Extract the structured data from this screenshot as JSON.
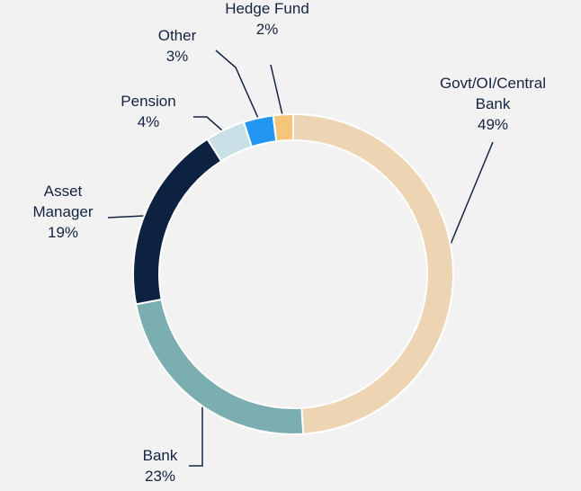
{
  "chart_data": {
    "type": "donut",
    "categories": [
      "Govt/OI/Central\nBank",
      "Bank",
      "Asset\nManager",
      "Pension",
      "Other",
      "Hedge Fund"
    ],
    "values": [
      49,
      23,
      19,
      4,
      3,
      2
    ],
    "value_labels": [
      "49%",
      "23%",
      "19%",
      "4%",
      "3%",
      "2%"
    ],
    "colors": [
      "#edd5b3",
      "#7aaeb0",
      "#0d2240",
      "#c9e0e6",
      "#2196f3",
      "#f5c57a"
    ]
  }
}
